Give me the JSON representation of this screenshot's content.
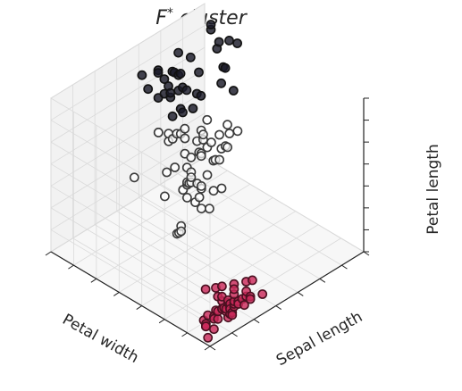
{
  "chart_data": {
    "type": "scatter",
    "projection": "3d",
    "title_main": "F",
    "title_sup": "*",
    "title_rest": " cluster",
    "axes": {
      "x": {
        "label": "Petal width",
        "lim": [
          0,
          2.6
        ]
      },
      "y": {
        "label": "Sepal length",
        "lim": [
          4.2,
          8.0
        ]
      },
      "z": {
        "label": "Petal length",
        "lim": [
          1,
          7
        ]
      }
    },
    "tick_labels_visible": false,
    "grid": true,
    "legend": "none",
    "colors": {
      "cluster_0_fill": "#1a1a28",
      "cluster_0_edge": "#111111",
      "cluster_1_fill": "#ffffff",
      "cluster_1_edge": "#3a3a3a",
      "cluster_2_fill": "#c92a5a",
      "cluster_2_edge": "#4a1020",
      "pane_left": "#eaeaea",
      "pane_right": "#f2f2f2",
      "pane_floor": "#f7f7f7"
    },
    "series": [
      {
        "cluster": 0,
        "points": [
          [
            2.1,
            7.6,
            6.6
          ],
          [
            2.3,
            7.7,
            6.7
          ],
          [
            2.0,
            7.9,
            6.4
          ],
          [
            2.2,
            7.7,
            6.1
          ],
          [
            2.3,
            7.2,
            6.1
          ],
          [
            1.8,
            7.3,
            6.3
          ],
          [
            2.4,
            6.3,
            5.6
          ],
          [
            2.3,
            6.9,
            5.7
          ],
          [
            2.3,
            6.8,
            5.9
          ],
          [
            2.5,
            6.7,
            5.8
          ],
          [
            2.5,
            7.2,
            6.0
          ],
          [
            2.1,
            6.7,
            5.7
          ],
          [
            2.4,
            6.9,
            5.7
          ],
          [
            2.1,
            6.8,
            5.5
          ],
          [
            2.0,
            6.5,
            5.2
          ],
          [
            1.8,
            7.2,
            5.8
          ],
          [
            1.9,
            7.4,
            6.1
          ],
          [
            2.0,
            7.7,
            6.7
          ],
          [
            2.3,
            6.4,
            5.3
          ],
          [
            2.2,
            6.5,
            5.8
          ],
          [
            2.5,
            6.3,
            6.0
          ],
          [
            2.3,
            6.7,
            5.2
          ],
          [
            2.2,
            6.4,
            5.6
          ],
          [
            2.4,
            6.7,
            5.6
          ],
          [
            1.8,
            6.5,
            5.5
          ],
          [
            2.0,
            6.9,
            5.4
          ],
          [
            2.1,
            7.1,
            5.9
          ],
          [
            1.6,
            7.2,
            5.8
          ],
          [
            2.3,
            6.9,
            5.1
          ],
          [
            1.8,
            6.7,
            5.8
          ],
          [
            2.1,
            6.4,
            5.6
          ],
          [
            1.9,
            6.4,
            5.3
          ],
          [
            2.5,
            6.7,
            5.7
          ],
          [
            2.3,
            7.7,
            6.9
          ],
          [
            2.0,
            6.3,
            5.1
          ],
          [
            2.2,
            6.8,
            6.0
          ]
        ]
      },
      {
        "cluster": 1,
        "points": [
          [
            1.4,
            7.0,
            4.7
          ],
          [
            1.5,
            6.4,
            4.5
          ],
          [
            1.5,
            6.9,
            4.9
          ],
          [
            1.3,
            5.5,
            4.0
          ],
          [
            1.5,
            6.5,
            4.6
          ],
          [
            1.3,
            5.7,
            4.5
          ],
          [
            1.6,
            6.3,
            4.7
          ],
          [
            1.0,
            4.9,
            3.3
          ],
          [
            1.3,
            6.6,
            4.6
          ],
          [
            1.4,
            5.2,
            3.9
          ],
          [
            1.0,
            5.0,
            3.5
          ],
          [
            1.5,
            5.9,
            4.2
          ],
          [
            1.0,
            6.0,
            4.0
          ],
          [
            1.4,
            6.1,
            4.7
          ],
          [
            1.3,
            5.6,
            3.6
          ],
          [
            1.4,
            6.7,
            4.4
          ],
          [
            1.5,
            5.6,
            4.5
          ],
          [
            1.0,
            5.8,
            4.1
          ],
          [
            1.5,
            6.2,
            4.5
          ],
          [
            1.1,
            5.6,
            3.9
          ],
          [
            1.8,
            5.9,
            4.8
          ],
          [
            1.3,
            6.1,
            4.0
          ],
          [
            1.5,
            6.3,
            4.9
          ],
          [
            1.2,
            6.1,
            4.7
          ],
          [
            1.3,
            6.4,
            4.3
          ],
          [
            1.4,
            6.6,
            4.4
          ],
          [
            1.4,
            6.8,
            4.8
          ],
          [
            1.7,
            6.7,
            5.0
          ],
          [
            1.5,
            6.0,
            4.5
          ],
          [
            1.0,
            5.7,
            3.5
          ],
          [
            1.1,
            5.5,
            3.8
          ],
          [
            1.0,
            5.5,
            3.7
          ],
          [
            1.2,
            5.8,
            3.9
          ],
          [
            1.6,
            6.0,
            5.1
          ],
          [
            1.5,
            5.4,
            4.5
          ],
          [
            1.6,
            6.0,
            4.5
          ],
          [
            1.5,
            6.7,
            4.7
          ],
          [
            1.3,
            6.3,
            4.4
          ],
          [
            1.3,
            5.6,
            4.1
          ],
          [
            1.3,
            5.5,
            4.0
          ],
          [
            1.2,
            5.5,
            4.4
          ],
          [
            1.4,
            6.1,
            4.6
          ],
          [
            1.2,
            5.8,
            4.0
          ],
          [
            1.0,
            5.0,
            3.3
          ],
          [
            1.3,
            5.6,
            4.2
          ],
          [
            1.2,
            5.7,
            4.2
          ],
          [
            1.3,
            5.7,
            4.1
          ],
          [
            1.1,
            5.1,
            3.0
          ],
          [
            1.3,
            5.7,
            4.3
          ],
          [
            1.7,
            4.9,
            4.5
          ],
          [
            1.9,
            5.8,
            5.1
          ],
          [
            1.8,
            6.3,
            4.9
          ],
          [
            1.8,
            6.0,
            4.8
          ],
          [
            1.8,
            6.1,
            4.9
          ],
          [
            1.5,
            6.3,
            5.1
          ],
          [
            1.4,
            6.1,
            5.6
          ],
          [
            1.8,
            6.2,
            4.8
          ],
          [
            1.9,
            5.8,
            5.1
          ],
          [
            1.8,
            5.9,
            5.1
          ]
        ]
      },
      {
        "cluster": 2,
        "points": [
          [
            0.2,
            5.1,
            1.4
          ],
          [
            0.2,
            4.9,
            1.4
          ],
          [
            0.2,
            4.7,
            1.3
          ],
          [
            0.2,
            4.6,
            1.5
          ],
          [
            0.2,
            5.0,
            1.4
          ],
          [
            0.4,
            5.4,
            1.7
          ],
          [
            0.3,
            4.6,
            1.4
          ],
          [
            0.2,
            5.0,
            1.5
          ],
          [
            0.2,
            4.4,
            1.4
          ],
          [
            0.1,
            4.9,
            1.5
          ],
          [
            0.2,
            5.4,
            1.5
          ],
          [
            0.2,
            4.8,
            1.6
          ],
          [
            0.1,
            4.8,
            1.4
          ],
          [
            0.1,
            4.3,
            1.1
          ],
          [
            0.2,
            5.8,
            1.2
          ],
          [
            0.4,
            5.7,
            1.5
          ],
          [
            0.4,
            5.4,
            1.3
          ],
          [
            0.3,
            5.1,
            1.4
          ],
          [
            0.3,
            5.7,
            1.7
          ],
          [
            0.3,
            5.1,
            1.5
          ],
          [
            0.2,
            5.4,
            1.7
          ],
          [
            0.4,
            5.1,
            1.5
          ],
          [
            0.2,
            4.6,
            1.0
          ],
          [
            0.5,
            5.1,
            1.7
          ],
          [
            0.2,
            4.8,
            1.9
          ],
          [
            0.2,
            5.0,
            1.6
          ],
          [
            0.4,
            5.0,
            1.6
          ],
          [
            0.2,
            5.2,
            1.5
          ],
          [
            0.2,
            5.2,
            1.4
          ],
          [
            0.2,
            4.7,
            1.6
          ],
          [
            0.2,
            4.8,
            1.6
          ],
          [
            0.4,
            5.4,
            1.5
          ],
          [
            0.1,
            5.2,
            1.5
          ],
          [
            0.2,
            5.5,
            1.4
          ],
          [
            0.2,
            4.9,
            1.5
          ],
          [
            0.2,
            5.0,
            1.2
          ],
          [
            0.2,
            5.5,
            1.3
          ],
          [
            0.1,
            4.9,
            1.4
          ],
          [
            0.2,
            4.4,
            1.3
          ],
          [
            0.2,
            5.1,
            1.5
          ],
          [
            0.3,
            5.0,
            1.3
          ],
          [
            0.3,
            4.5,
            1.3
          ],
          [
            0.2,
            4.4,
            1.3
          ],
          [
            0.6,
            5.0,
            1.6
          ],
          [
            0.4,
            5.1,
            1.9
          ],
          [
            0.3,
            4.8,
            1.4
          ],
          [
            0.2,
            5.1,
            1.6
          ],
          [
            0.2,
            4.6,
            1.4
          ],
          [
            0.2,
            5.3,
            1.5
          ],
          [
            0.2,
            5.0,
            1.4
          ]
        ]
      }
    ]
  }
}
